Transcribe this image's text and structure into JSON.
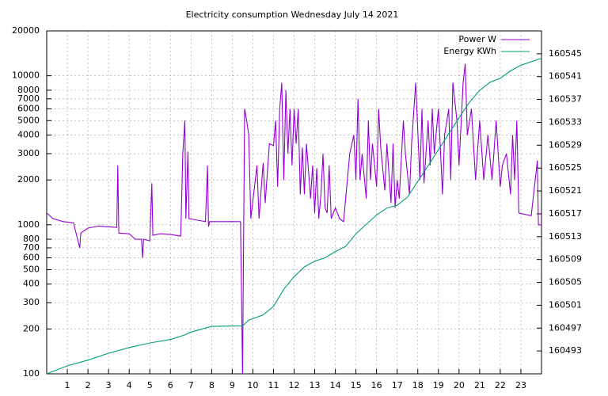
{
  "chart_data": {
    "type": "line",
    "title": "Electricity consumption Wednesday July 14 2021",
    "xlim": [
      0,
      24
    ],
    "xticks": [
      1,
      2,
      3,
      4,
      5,
      6,
      7,
      8,
      9,
      10,
      11,
      12,
      13,
      14,
      15,
      16,
      17,
      18,
      19,
      20,
      21,
      22,
      23
    ],
    "ylim": [
      100,
      20000
    ],
    "log_y": true,
    "yticks": [
      100,
      200,
      300,
      400,
      500,
      600,
      700,
      800,
      1000,
      2000,
      3000,
      4000,
      5000,
      6000,
      7000,
      8000,
      10000,
      20000
    ],
    "y2lim": [
      160489,
      160549
    ],
    "y2ticks": [
      160493,
      160497,
      160501,
      160505,
      160509,
      160513,
      160517,
      160521,
      160525,
      160529,
      160533,
      160537,
      160541,
      160545
    ],
    "grid": true,
    "legend": "top-right",
    "series": [
      {
        "name": "Power W",
        "color": "#9400d3",
        "x": [
          0,
          0.3,
          0.8,
          1.3,
          1.6,
          1.65,
          2,
          2.5,
          3.4,
          3.45,
          3.5,
          4,
          4.3,
          4.6,
          4.65,
          4.7,
          5,
          5.1,
          5.15,
          5.5,
          6,
          6.5,
          6.6,
          6.7,
          6.75,
          6.85,
          6.9,
          7.2,
          7.7,
          7.8,
          7.85,
          7.9,
          8.5,
          9.4,
          9.5,
          9.6,
          9.7,
          9.8,
          9.9,
          10.2,
          10.3,
          10.5,
          10.6,
          10.8,
          11,
          11.1,
          11.2,
          11.3,
          11.4,
          11.5,
          11.6,
          11.7,
          11.8,
          11.9,
          12,
          12.1,
          12.2,
          12.3,
          12.4,
          12.5,
          12.6,
          12.8,
          12.9,
          13,
          13.1,
          13.2,
          13.3,
          13.4,
          13.5,
          13.6,
          13.7,
          13.8,
          14,
          14.2,
          14.4,
          14.5,
          14.7,
          14.9,
          15,
          15.1,
          15.2,
          15.3,
          15.5,
          15.6,
          15.7,
          15.8,
          16,
          16.1,
          16.2,
          16.4,
          16.5,
          16.7,
          16.8,
          16.9,
          17,
          17.1,
          17.3,
          17.4,
          17.6,
          17.7,
          17.9,
          18.1,
          18.2,
          18.3,
          18.5,
          18.6,
          18.7,
          18.8,
          19,
          19.2,
          19.3,
          19.5,
          19.6,
          19.7,
          19.9,
          20,
          20.2,
          20.3,
          20.4,
          20.6,
          20.8,
          21,
          21.2,
          21.4,
          21.6,
          21.8,
          22,
          22.1,
          22.3,
          22.5,
          22.6,
          22.7,
          22.8,
          22.9,
          23.5,
          23.8,
          23.85,
          24
        ],
        "values": [
          1200,
          1100,
          1050,
          1030,
          700,
          880,
          950,
          980,
          960,
          2500,
          880,
          870,
          800,
          800,
          600,
          800,
          780,
          1900,
          850,
          870,
          860,
          840,
          3000,
          5000,
          1100,
          3100,
          1100,
          1080,
          1050,
          2500,
          970,
          1050,
          1050,
          1050,
          100,
          6000,
          5000,
          4000,
          1100,
          2500,
          1100,
          2600,
          1400,
          3500,
          3400,
          5000,
          1800,
          6000,
          9000,
          2000,
          8000,
          3000,
          6000,
          2500,
          6000,
          3500,
          6000,
          1600,
          3300,
          1600,
          3500,
          1500,
          2500,
          1200,
          2400,
          1100,
          1600,
          3000,
          1300,
          1200,
          2500,
          1100,
          1300,
          1100,
          1050,
          1500,
          3000,
          4000,
          2000,
          7000,
          2000,
          3000,
          1500,
          5000,
          2000,
          3500,
          1800,
          6000,
          3300,
          1700,
          3500,
          1400,
          3500,
          1300,
          2000,
          1500,
          5000,
          3000,
          1600,
          3500,
          9000,
          2000,
          6000,
          1900,
          5000,
          2500,
          6000,
          3000,
          6000,
          1600,
          4000,
          6000,
          2000,
          9000,
          5000,
          2500,
          9000,
          12000,
          4000,
          6000,
          2000,
          5000,
          2000,
          4000,
          2000,
          5000,
          1800,
          2500,
          3000,
          1600,
          4000,
          2000,
          5000,
          1200,
          1150,
          2700,
          1000,
          1000
        ]
      },
      {
        "name": "Energy KWh",
        "color": "#009e73",
        "axis": "y2",
        "x": [
          0,
          1,
          2,
          3,
          4,
          5,
          6,
          6.7,
          7,
          8,
          9.5,
          9.8,
          10.5,
          11,
          11.5,
          12,
          12.5,
          13,
          13.5,
          14,
          14.5,
          15,
          16,
          16.5,
          17,
          17.5,
          18,
          18.5,
          19,
          19.5,
          20,
          20.5,
          21,
          21.5,
          22,
          22.5,
          23,
          24
        ],
        "values": [
          160489,
          160490.4,
          160491.4,
          160492.6,
          160493.6,
          160494.4,
          160495,
          160495.8,
          160496.3,
          160497.3,
          160497.4,
          160498.4,
          160499.3,
          160500.8,
          160503.8,
          160506,
          160507.7,
          160508.7,
          160509.3,
          160510.4,
          160511.3,
          160513.5,
          160516.8,
          160518,
          160518.5,
          160519.9,
          160522.7,
          160525.4,
          160528.2,
          160531,
          160533.8,
          160536.5,
          160538.6,
          160540,
          160540.7,
          160542,
          160543,
          160544.2
        ]
      }
    ]
  }
}
